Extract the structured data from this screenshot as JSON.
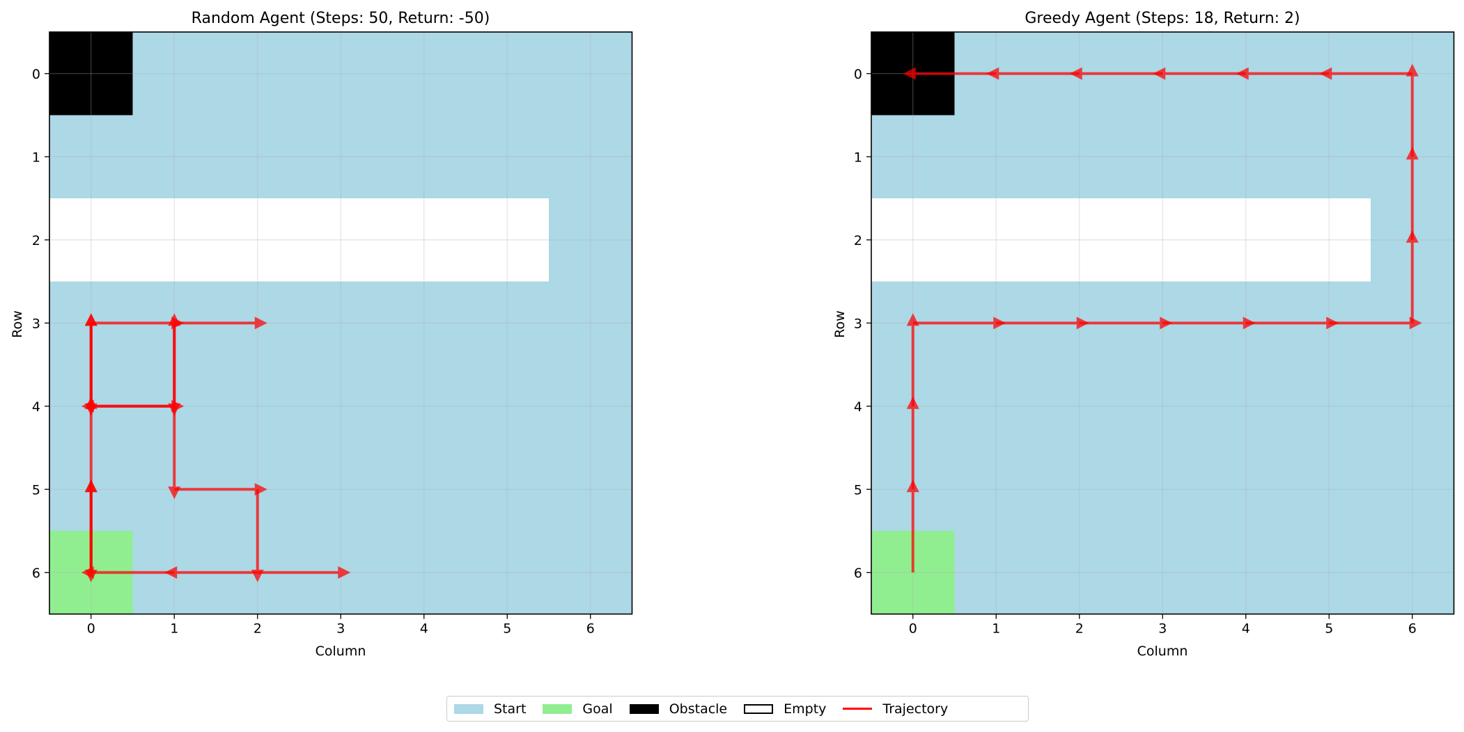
{
  "colors": {
    "start": "#add8e6",
    "goal": "#90ee90",
    "obstacle": "#000000",
    "empty": "#ffffff",
    "trajectory": "#ff0000"
  },
  "legend": {
    "start": "Start",
    "goal": "Goal",
    "obstacle": "Obstacle",
    "empty": "Empty",
    "trajectory": "Trajectory"
  },
  "chart_data": [
    {
      "type": "heatmap",
      "title": "Random Agent (Steps: 50, Return: -50)",
      "xlabel": "Column",
      "ylabel": "Row",
      "xticks": [
        "0",
        "1",
        "2",
        "3",
        "4",
        "5",
        "6"
      ],
      "yticks": [
        "0",
        "1",
        "2",
        "3",
        "4",
        "5",
        "6"
      ],
      "grid": true,
      "grid_cells": [
        [
          "obstacle",
          "start",
          "start",
          "start",
          "start",
          "start",
          "start"
        ],
        [
          "start",
          "start",
          "start",
          "start",
          "start",
          "start",
          "start"
        ],
        [
          "empty",
          "empty",
          "empty",
          "empty",
          "empty",
          "empty",
          "start"
        ],
        [
          "start",
          "start",
          "start",
          "start",
          "start",
          "start",
          "start"
        ],
        [
          "start",
          "start",
          "start",
          "start",
          "start",
          "start",
          "start"
        ],
        [
          "start",
          "start",
          "start",
          "start",
          "start",
          "start",
          "start"
        ],
        [
          "goal",
          "start",
          "start",
          "start",
          "start",
          "start",
          "start"
        ]
      ],
      "trajectory_moves": [
        [
          [
            0,
            6
          ],
          [
            0,
            5
          ]
        ],
        [
          [
            0,
            5
          ],
          [
            0,
            4
          ]
        ],
        [
          [
            0,
            4
          ],
          [
            0,
            3
          ]
        ],
        [
          [
            0,
            3
          ],
          [
            1,
            3
          ]
        ],
        [
          [
            1,
            3
          ],
          [
            2,
            3
          ]
        ],
        [
          [
            1,
            3
          ],
          [
            1,
            4
          ]
        ],
        [
          [
            1,
            4
          ],
          [
            0,
            4
          ]
        ],
        [
          [
            0,
            4
          ],
          [
            1,
            4
          ]
        ],
        [
          [
            1,
            4
          ],
          [
            1,
            5
          ]
        ],
        [
          [
            1,
            5
          ],
          [
            2,
            5
          ]
        ],
        [
          [
            2,
            5
          ],
          [
            2,
            6
          ]
        ],
        [
          [
            2,
            6
          ],
          [
            3,
            6
          ]
        ],
        [
          [
            2,
            6
          ],
          [
            1,
            6
          ]
        ],
        [
          [
            1,
            6
          ],
          [
            0,
            6
          ]
        ],
        [
          [
            0,
            6
          ],
          [
            0,
            5
          ]
        ],
        [
          [
            0,
            5
          ],
          [
            0,
            6
          ]
        ],
        [
          [
            1,
            4
          ],
          [
            1,
            3
          ]
        ],
        [
          [
            0,
            3
          ],
          [
            0,
            4
          ]
        ],
        [
          [
            0,
            4
          ],
          [
            0,
            3
          ]
        ]
      ]
    },
    {
      "type": "heatmap",
      "title": "Greedy Agent (Steps: 18, Return: 2)",
      "xlabel": "Column",
      "ylabel": "Row",
      "xticks": [
        "0",
        "1",
        "2",
        "3",
        "4",
        "5",
        "6"
      ],
      "yticks": [
        "0",
        "1",
        "2",
        "3",
        "4",
        "5",
        "6"
      ],
      "grid": true,
      "grid_cells": [
        [
          "obstacle",
          "start",
          "start",
          "start",
          "start",
          "start",
          "start"
        ],
        [
          "start",
          "start",
          "start",
          "start",
          "start",
          "start",
          "start"
        ],
        [
          "empty",
          "empty",
          "empty",
          "empty",
          "empty",
          "empty",
          "start"
        ],
        [
          "start",
          "start",
          "start",
          "start",
          "start",
          "start",
          "start"
        ],
        [
          "start",
          "start",
          "start",
          "start",
          "start",
          "start",
          "start"
        ],
        [
          "start",
          "start",
          "start",
          "start",
          "start",
          "start",
          "start"
        ],
        [
          "goal",
          "start",
          "start",
          "start",
          "start",
          "start",
          "start"
        ]
      ],
      "trajectory_moves": [
        [
          [
            0,
            6
          ],
          [
            0,
            5
          ]
        ],
        [
          [
            0,
            5
          ],
          [
            0,
            4
          ]
        ],
        [
          [
            0,
            4
          ],
          [
            0,
            3
          ]
        ],
        [
          [
            0,
            3
          ],
          [
            1,
            3
          ]
        ],
        [
          [
            1,
            3
          ],
          [
            2,
            3
          ]
        ],
        [
          [
            2,
            3
          ],
          [
            3,
            3
          ]
        ],
        [
          [
            3,
            3
          ],
          [
            4,
            3
          ]
        ],
        [
          [
            4,
            3
          ],
          [
            5,
            3
          ]
        ],
        [
          [
            5,
            3
          ],
          [
            6,
            3
          ]
        ],
        [
          [
            6,
            3
          ],
          [
            6,
            2
          ]
        ],
        [
          [
            6,
            2
          ],
          [
            6,
            1
          ]
        ],
        [
          [
            6,
            1
          ],
          [
            6,
            0
          ]
        ],
        [
          [
            6,
            0
          ],
          [
            5,
            0
          ]
        ],
        [
          [
            5,
            0
          ],
          [
            4,
            0
          ]
        ],
        [
          [
            4,
            0
          ],
          [
            3,
            0
          ]
        ],
        [
          [
            3,
            0
          ],
          [
            2,
            0
          ]
        ],
        [
          [
            2,
            0
          ],
          [
            1,
            0
          ]
        ],
        [
          [
            1,
            0
          ],
          [
            0,
            0
          ]
        ]
      ]
    }
  ]
}
